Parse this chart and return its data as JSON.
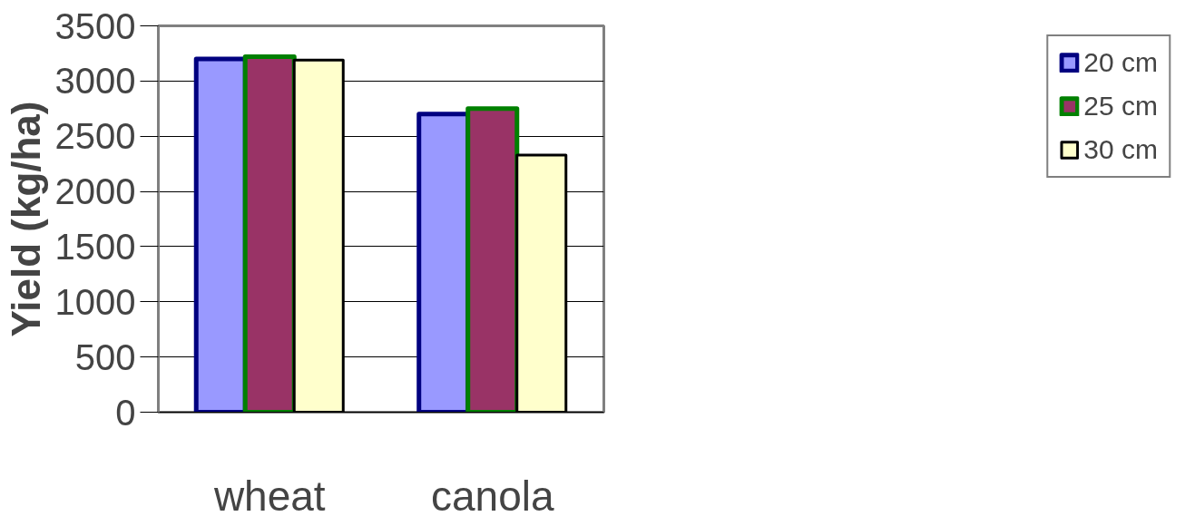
{
  "chart_data": {
    "type": "bar",
    "ylabel": "Yield (kg/ha)",
    "categories": [
      "wheat",
      "canola"
    ],
    "series": [
      {
        "name": "20 cm",
        "color": "#9999ff",
        "values": [
          3200,
          2700
        ]
      },
      {
        "name": "25 cm",
        "color": "#993366",
        "values": [
          3220,
          2750
        ]
      },
      {
        "name": "30 cm",
        "color": "#ffffcc",
        "values": [
          3190,
          2330
        ]
      }
    ],
    "ylim": [
      0,
      3500
    ],
    "yticks": [
      0,
      500,
      1000,
      1500,
      2000,
      2500,
      3000,
      3500
    ],
    "grid": "y",
    "legend": "right"
  }
}
